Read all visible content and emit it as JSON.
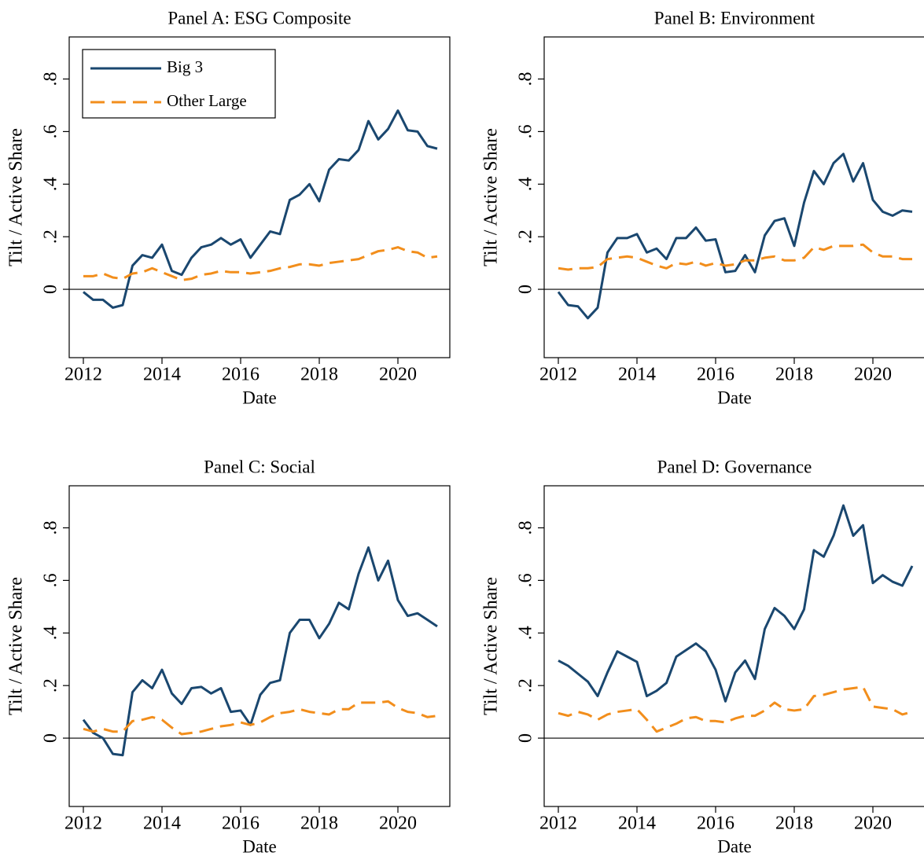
{
  "chart_data": [
    {
      "type": "line",
      "title": "Panel A: ESG Composite",
      "xlabel": "Date",
      "ylabel": "Tilt / Active Share",
      "x": [
        2012,
        2012.25,
        2012.5,
        2012.75,
        2013,
        2013.25,
        2013.5,
        2013.75,
        2014,
        2014.25,
        2014.5,
        2014.75,
        2015,
        2015.25,
        2015.5,
        2015.75,
        2016,
        2016.25,
        2016.5,
        2016.75,
        2017,
        2017.25,
        2017.5,
        2017.75,
        2018,
        2018.25,
        2018.5,
        2018.75,
        2019,
        2019.25,
        2019.5,
        2019.75,
        2020,
        2020.25,
        2020.5,
        2020.75,
        2021
      ],
      "series": [
        {
          "name": "Big 3",
          "color": "#1a476f",
          "dashed": false,
          "values": [
            -0.01,
            -0.04,
            -0.04,
            -0.07,
            -0.06,
            0.09,
            0.13,
            0.12,
            0.17,
            0.07,
            0.055,
            0.12,
            0.16,
            0.17,
            0.195,
            0.17,
            0.19,
            0.12,
            0.17,
            0.22,
            0.21,
            0.34,
            0.36,
            0.4,
            0.335,
            0.455,
            0.495,
            0.49,
            0.53,
            0.64,
            0.57,
            0.61,
            0.68,
            0.605,
            0.6,
            0.545,
            0.535
          ]
        },
        {
          "name": "Other Large",
          "color": "#f28e1c",
          "dashed": true,
          "values": [
            0.05,
            0.05,
            0.06,
            0.045,
            0.04,
            0.06,
            0.065,
            0.08,
            0.065,
            0.05,
            0.035,
            0.04,
            0.055,
            0.06,
            0.07,
            0.065,
            0.065,
            0.06,
            0.065,
            0.07,
            0.08,
            0.085,
            0.095,
            0.095,
            0.09,
            0.1,
            0.105,
            0.11,
            0.115,
            0.13,
            0.145,
            0.15,
            0.16,
            0.145,
            0.14,
            0.12,
            0.125
          ]
        }
      ],
      "xlim": [
        2011.64,
        2021.32
      ],
      "xticks": [
        2012,
        2014,
        2016,
        2018,
        2020
      ],
      "ylim": [
        -0.26,
        0.96
      ],
      "yticks": [
        0,
        {
          "value": 0.2,
          "label": ".2"
        },
        {
          "value": 0.4,
          "label": ".4"
        },
        {
          "value": 0.6,
          "label": ".6"
        },
        {
          "value": 0.8,
          "label": ".8"
        }
      ],
      "yline": 0,
      "legend": "top-left"
    },
    {
      "type": "line",
      "title": "Panel B: Environment",
      "xlabel": "Date",
      "ylabel": "Tilt / Active Share",
      "x": [
        2012,
        2012.25,
        2012.5,
        2012.75,
        2013,
        2013.25,
        2013.5,
        2013.75,
        2014,
        2014.25,
        2014.5,
        2014.75,
        2015,
        2015.25,
        2015.5,
        2015.75,
        2016,
        2016.25,
        2016.5,
        2016.75,
        2017,
        2017.25,
        2017.5,
        2017.75,
        2018,
        2018.25,
        2018.5,
        2018.75,
        2019,
        2019.25,
        2019.5,
        2019.75,
        2020,
        2020.25,
        2020.5,
        2020.75,
        2021
      ],
      "series": [
        {
          "color": "#1a476f",
          "dashed": false,
          "values": [
            -0.01,
            -0.06,
            -0.065,
            -0.11,
            -0.07,
            0.14,
            0.195,
            0.195,
            0.21,
            0.14,
            0.155,
            0.115,
            0.195,
            0.195,
            0.235,
            0.185,
            0.19,
            0.065,
            0.07,
            0.13,
            0.065,
            0.205,
            0.26,
            0.27,
            0.165,
            0.33,
            0.45,
            0.4,
            0.48,
            0.515,
            0.41,
            0.48,
            0.34,
            0.295,
            0.28,
            0.3,
            0.295
          ]
        },
        {
          "color": "#f28e1c",
          "dashed": true,
          "values": [
            0.08,
            0.075,
            0.08,
            0.08,
            0.085,
            0.115,
            0.12,
            0.125,
            0.12,
            0.105,
            0.09,
            0.08,
            0.1,
            0.095,
            0.105,
            0.09,
            0.1,
            0.09,
            0.095,
            0.11,
            0.11,
            0.12,
            0.125,
            0.11,
            0.11,
            0.12,
            0.16,
            0.15,
            0.165,
            0.165,
            0.165,
            0.17,
            0.14,
            0.125,
            0.125,
            0.115,
            0.115
          ]
        }
      ],
      "xlim": [
        2011.64,
        2021.32
      ],
      "xticks": [
        2012,
        2014,
        2016,
        2018,
        2020
      ],
      "ylim": [
        -0.26,
        0.96
      ],
      "yticks": [
        0,
        {
          "value": 0.2,
          "label": ".2"
        },
        {
          "value": 0.4,
          "label": ".4"
        },
        {
          "value": 0.6,
          "label": ".6"
        },
        {
          "value": 0.8,
          "label": ".8"
        }
      ],
      "yline": 0
    },
    {
      "type": "line",
      "title": "Panel C: Social",
      "xlabel": "Date",
      "ylabel": "Tilt / Active Share",
      "x": [
        2012,
        2012.25,
        2012.5,
        2012.75,
        2013,
        2013.25,
        2013.5,
        2013.75,
        2014,
        2014.25,
        2014.5,
        2014.75,
        2015,
        2015.25,
        2015.5,
        2015.75,
        2016,
        2016.25,
        2016.5,
        2016.75,
        2017,
        2017.25,
        2017.5,
        2017.75,
        2018,
        2018.25,
        2018.5,
        2018.75,
        2019,
        2019.25,
        2019.5,
        2019.75,
        2020,
        2020.25,
        2020.5,
        2020.75,
        2021
      ],
      "series": [
        {
          "color": "#1a476f",
          "dashed": false,
          "values": [
            0.07,
            0.02,
            0.0,
            -0.06,
            -0.065,
            0.175,
            0.22,
            0.19,
            0.26,
            0.17,
            0.13,
            0.19,
            0.195,
            0.17,
            0.19,
            0.1,
            0.105,
            0.05,
            0.165,
            0.21,
            0.22,
            0.4,
            0.45,
            0.45,
            0.38,
            0.435,
            0.515,
            0.49,
            0.625,
            0.725,
            0.6,
            0.675,
            0.525,
            0.465,
            0.475,
            0.45,
            0.425
          ]
        },
        {
          "color": "#f28e1c",
          "dashed": true,
          "values": [
            0.035,
            0.025,
            0.035,
            0.025,
            0.025,
            0.065,
            0.07,
            0.08,
            0.07,
            0.04,
            0.015,
            0.02,
            0.025,
            0.035,
            0.045,
            0.05,
            0.06,
            0.05,
            0.06,
            0.08,
            0.095,
            0.1,
            0.11,
            0.1,
            0.095,
            0.09,
            0.11,
            0.11,
            0.135,
            0.135,
            0.135,
            0.14,
            0.115,
            0.1,
            0.095,
            0.08,
            0.085
          ]
        }
      ],
      "xlim": [
        2011.64,
        2021.32
      ],
      "xticks": [
        2012,
        2014,
        2016,
        2018,
        2020
      ],
      "ylim": [
        -0.26,
        0.96
      ],
      "yticks": [
        0,
        {
          "value": 0.2,
          "label": ".2"
        },
        {
          "value": 0.4,
          "label": ".4"
        },
        {
          "value": 0.6,
          "label": ".6"
        },
        {
          "value": 0.8,
          "label": ".8"
        }
      ],
      "yline": 0
    },
    {
      "type": "line",
      "title": "Panel D: Governance",
      "xlabel": "Date",
      "ylabel": "Tilt / Active Share",
      "x": [
        2012,
        2012.25,
        2012.5,
        2012.75,
        2013,
        2013.25,
        2013.5,
        2013.75,
        2014,
        2014.25,
        2014.5,
        2014.75,
        2015,
        2015.25,
        2015.5,
        2015.75,
        2016,
        2016.25,
        2016.5,
        2016.75,
        2017,
        2017.25,
        2017.5,
        2017.75,
        2018,
        2018.25,
        2018.5,
        2018.75,
        2019,
        2019.25,
        2019.5,
        2019.75,
        2020,
        2020.25,
        2020.5,
        2020.75,
        2021
      ],
      "series": [
        {
          "color": "#1a476f",
          "dashed": false,
          "values": [
            0.295,
            0.275,
            0.245,
            0.215,
            0.16,
            0.25,
            0.33,
            0.31,
            0.29,
            0.16,
            0.18,
            0.21,
            0.31,
            0.335,
            0.36,
            0.33,
            0.26,
            0.14,
            0.25,
            0.295,
            0.225,
            0.415,
            0.495,
            0.465,
            0.415,
            0.49,
            0.715,
            0.69,
            0.77,
            0.885,
            0.77,
            0.81,
            0.59,
            0.62,
            0.595,
            0.58,
            0.655
          ]
        },
        {
          "color": "#f28e1c",
          "dashed": true,
          "values": [
            0.095,
            0.085,
            0.1,
            0.09,
            0.07,
            0.09,
            0.1,
            0.105,
            0.11,
            0.07,
            0.025,
            0.04,
            0.055,
            0.075,
            0.08,
            0.065,
            0.065,
            0.06,
            0.075,
            0.085,
            0.085,
            0.105,
            0.135,
            0.11,
            0.105,
            0.11,
            0.16,
            0.165,
            0.175,
            0.185,
            0.19,
            0.195,
            0.12,
            0.115,
            0.11,
            0.09,
            0.1
          ]
        }
      ],
      "xlim": [
        2011.64,
        2021.32
      ],
      "xticks": [
        2012,
        2014,
        2016,
        2018,
        2020
      ],
      "ylim": [
        -0.26,
        0.96
      ],
      "yticks": [
        0,
        {
          "value": 0.2,
          "label": ".2"
        },
        {
          "value": 0.4,
          "label": ".4"
        },
        {
          "value": 0.6,
          "label": ".6"
        },
        {
          "value": 0.8,
          "label": ".8"
        }
      ],
      "yline": 0
    }
  ]
}
